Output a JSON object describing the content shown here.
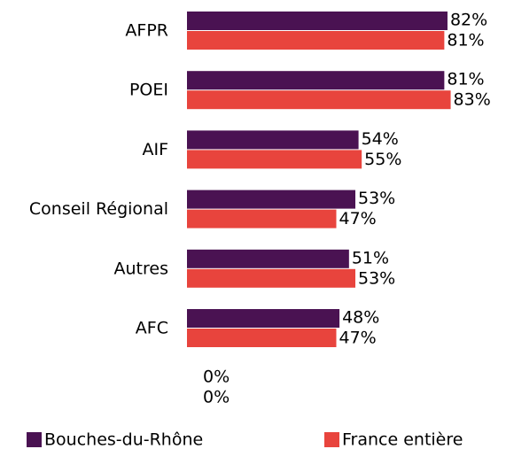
{
  "chart_data": {
    "type": "barh",
    "categories": [
      "AFPR",
      "POEI",
      "AIF",
      "Conseil Régional",
      "Autres",
      "AFC",
      null
    ],
    "series": [
      {
        "name": "Bouches-du-Rhône",
        "color": "#4a1252",
        "values": [
          82,
          81,
          54,
          53,
          51,
          48,
          0
        ],
        "value_labels": [
          "82%",
          "81%",
          "54%",
          "53%",
          "51%",
          "48%",
          "0%"
        ]
      },
      {
        "name": "France entière",
        "color": "#e8443d",
        "values": [
          81,
          83,
          55,
          47,
          53,
          47,
          0
        ],
        "value_labels": [
          "81%",
          "83%",
          "55%",
          "47%",
          "53%",
          "47%",
          "0%"
        ]
      }
    ],
    "xlim": [
      0,
      100
    ],
    "legend": "bottom"
  }
}
